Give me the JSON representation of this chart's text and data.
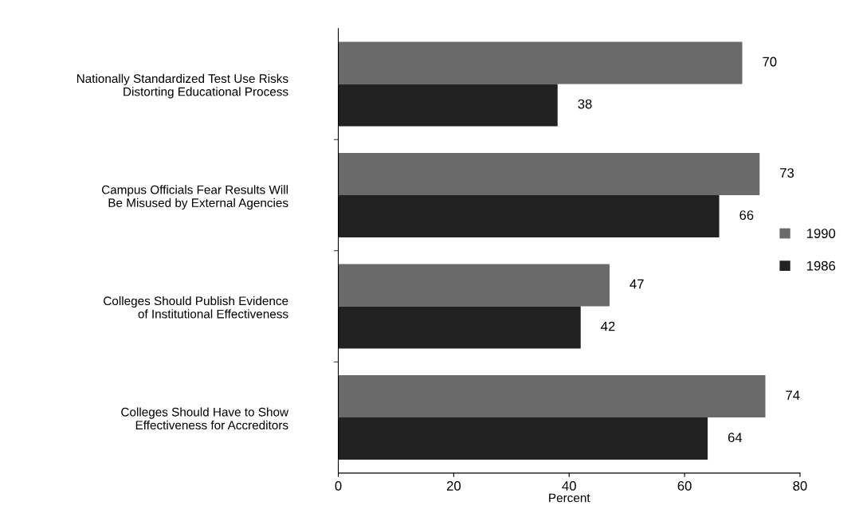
{
  "chart_data": {
    "type": "bar",
    "orientation": "horizontal",
    "categories": [
      "Nationally Standardized Test Use Risks\nDistorting Educational Process",
      "Campus Officials Fear Results Will\nBe Misused by External Agencies",
      "Colleges Should Publish Evidence\nof Institutional Effectiveness",
      "Colleges Should Have to Show\nEffectiveness for Accreditors"
    ],
    "series": [
      {
        "name": "1990",
        "color": "#6a6a6a",
        "values": [
          70,
          73,
          47,
          74
        ]
      },
      {
        "name": "1986",
        "color": "#222222",
        "values": [
          38,
          66,
          42,
          64
        ]
      }
    ],
    "xlabel": "Percent",
    "xlim": [
      0,
      80
    ],
    "xticks": [
      0,
      20,
      40,
      60,
      80
    ],
    "data_labels": true,
    "legend": "right",
    "grid": false
  }
}
